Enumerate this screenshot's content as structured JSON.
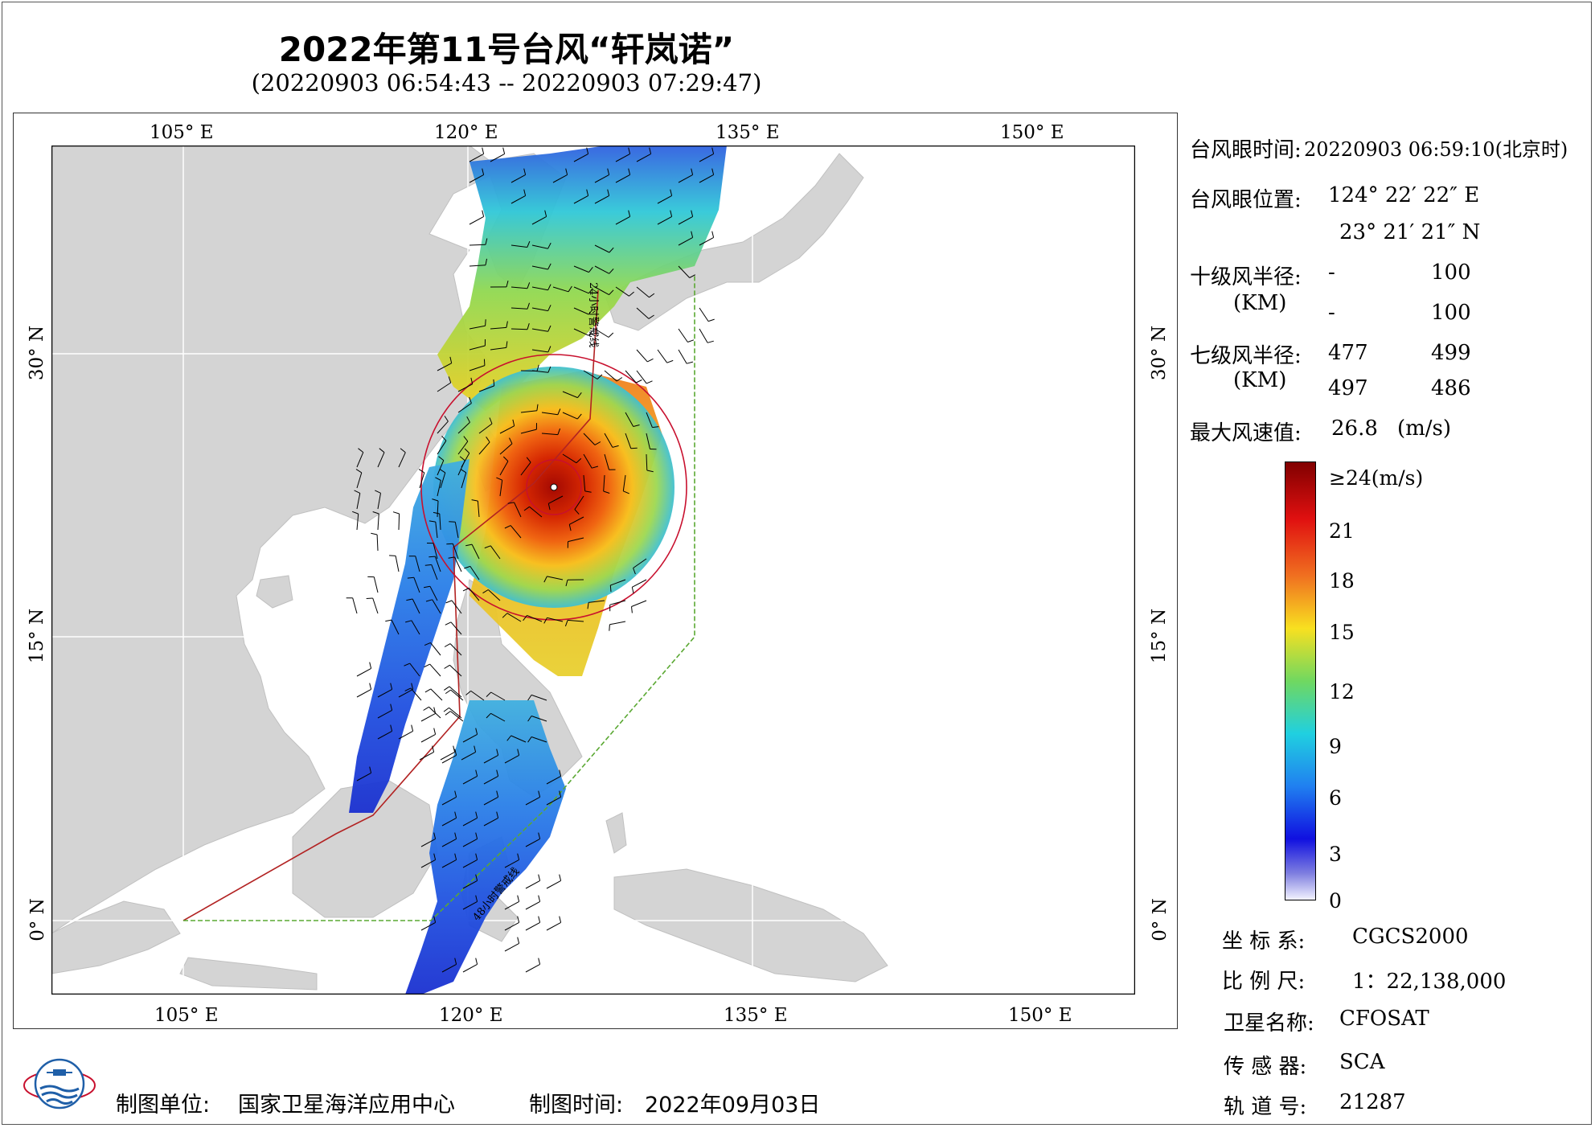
{
  "header": {
    "title": "2022年第11号台风“轩岚诺”",
    "subtitle": "(20220903 06:54:43 -- 20220903 07:29:47)"
  },
  "map": {
    "lon_ticks": [
      "105° E",
      "120° E",
      "135° E",
      "150° E"
    ],
    "lat_ticks": [
      "30° N",
      "15° N",
      "0° N"
    ],
    "annotations": [
      "24小时警戒线",
      "48小时警戒线"
    ],
    "colors": {
      "land": "#d4d4d4",
      "sea": "#ffffff",
      "line_24h": "#b22222",
      "line_48h": "#5aa832",
      "wind_circle": "#c8102e"
    }
  },
  "info": {
    "eye_time_label": "台风眼时间:",
    "eye_time_value": "20220903 06:59:10(北京时)",
    "eye_pos_label": "台风眼位置:",
    "eye_lon": "124° 22′ 22″ E",
    "eye_lat": "23° 21′ 21″ N",
    "r10_label": "十级风半径:",
    "r10_unit": "(KM)",
    "r10_values": [
      "-",
      "100",
      "-",
      "100"
    ],
    "r7_label": "七级风半径:",
    "r7_unit": "(KM)",
    "r7_values": [
      "477",
      "499",
      "497",
      "486"
    ],
    "max_wind_label": "最大风速值:",
    "max_wind_value": "26.8",
    "max_wind_unit": "(m/s)"
  },
  "colorbar": {
    "labels": [
      "≥24(m/s)",
      "21",
      "18",
      "15",
      "12",
      "9",
      "6",
      "3",
      "0"
    ],
    "values": [
      24,
      21,
      18,
      15,
      12,
      9,
      6,
      3,
      0
    ]
  },
  "meta": {
    "crs_label": "坐 标 系:",
    "crs_value": "CGCS2000",
    "scale_label": "比 例 尺:",
    "scale_value": "1：22,138,000",
    "satellite_label": "卫星名称:",
    "satellite_value": "CFOSAT",
    "sensor_label": "传 感 器:",
    "sensor_value": "SCA",
    "orbit_label": "轨 道 号:",
    "orbit_value": "21287"
  },
  "footer": {
    "producer_label": "制图单位:",
    "producer_value": "国家卫星海洋应用中心",
    "date_label": "制图时间:",
    "date_value": "2022年09月03日"
  }
}
